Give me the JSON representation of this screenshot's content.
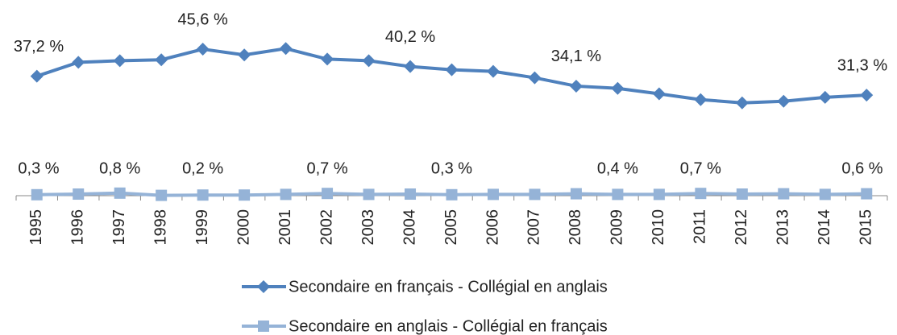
{
  "chart_data": {
    "type": "line",
    "categories": [
      "1995",
      "1996",
      "1997",
      "1998",
      "1999",
      "2000",
      "2001",
      "2002",
      "2003",
      "2004",
      "2005",
      "2006",
      "2007",
      "2008",
      "2009",
      "2010",
      "2011",
      "2012",
      "2013",
      "2014",
      "2015"
    ],
    "ylim": [
      0,
      50
    ],
    "series": [
      {
        "name": "Secondaire en français - Collégial en anglais",
        "color": "#4f81bd",
        "marker": "diamond",
        "values": [
          37.2,
          41.5,
          42.0,
          42.3,
          45.6,
          43.8,
          45.8,
          42.5,
          42.0,
          40.2,
          39.2,
          38.7,
          36.7,
          34.1,
          33.4,
          31.7,
          29.9,
          28.9,
          29.4,
          30.6,
          31.3
        ],
        "value_labels": [
          "37,2 %",
          null,
          null,
          null,
          "45,6 %",
          null,
          null,
          null,
          null,
          "40,2 %",
          null,
          null,
          null,
          "34,1 %",
          null,
          null,
          null,
          null,
          null,
          null,
          "31,3 %"
        ]
      },
      {
        "name": "Secondaire en anglais - Collégial en français",
        "color": "#95b3d7",
        "marker": "square",
        "values": [
          0.3,
          0.5,
          0.8,
          0.1,
          0.2,
          0.2,
          0.4,
          0.7,
          0.4,
          0.5,
          0.3,
          0.4,
          0.4,
          0.6,
          0.4,
          0.4,
          0.7,
          0.5,
          0.6,
          0.4,
          0.6
        ],
        "value_labels": [
          "0,3 %",
          null,
          "0,8 %",
          null,
          "0,2 %",
          null,
          null,
          "0,7 %",
          null,
          null,
          "0,3 %",
          null,
          null,
          null,
          "0,4 %",
          null,
          "0,7 %",
          null,
          null,
          null,
          "0,6 %"
        ]
      }
    ]
  }
}
